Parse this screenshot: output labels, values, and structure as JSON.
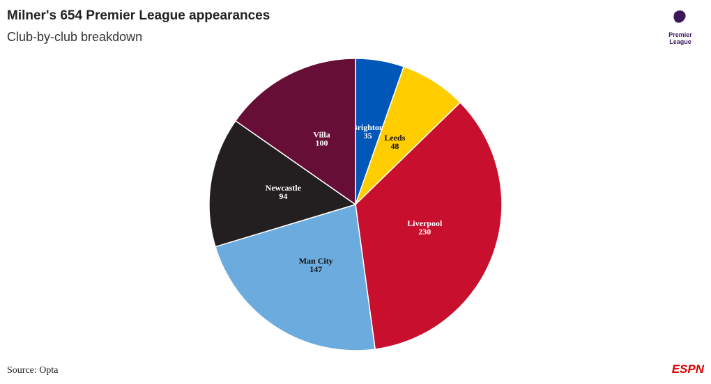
{
  "chart_data": {
    "type": "pie",
    "title": "Milner's 654 Premier League appearances",
    "subtitle": "Club-by-club breakdown",
    "source": "Source: Opta",
    "logo": [
      "Premier",
      "League"
    ],
    "brand": "ESPN",
    "categories": [
      "Brighton",
      "Leeds",
      "Liverpool",
      "Man City",
      "Newcastle",
      "Villa"
    ],
    "values": [
      35,
      48,
      230,
      147,
      94,
      100
    ],
    "colors": [
      "#0057b8",
      "#ffcd00",
      "#c8102e",
      "#6cabdd",
      "#231f20",
      "#670e36"
    ]
  }
}
